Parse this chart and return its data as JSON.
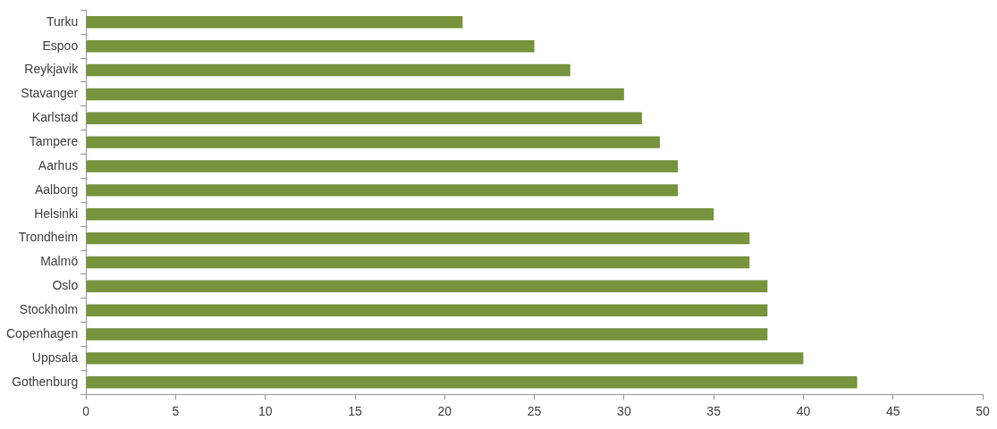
{
  "chart_data": {
    "type": "bar",
    "orientation": "horizontal",
    "categories": [
      "Turku",
      "Espoo",
      "Reykjavik",
      "Stavanger",
      "Karlstad",
      "Tampere",
      "Aarhus",
      "Aalborg",
      "Helsinki",
      "Trondheim",
      "Malmö",
      "Oslo",
      "Stockholm",
      "Copenhagen",
      "Uppsala",
      "Gothenburg"
    ],
    "values": [
      21,
      25,
      27,
      30,
      31,
      32,
      33,
      33,
      35,
      37,
      37,
      38,
      38,
      38,
      40,
      43
    ],
    "color": "#77933c",
    "xlim": [
      0,
      50
    ],
    "xticks": [
      0,
      5,
      10,
      15,
      20,
      25,
      30,
      35,
      40,
      45,
      50
    ],
    "legend": false
  }
}
